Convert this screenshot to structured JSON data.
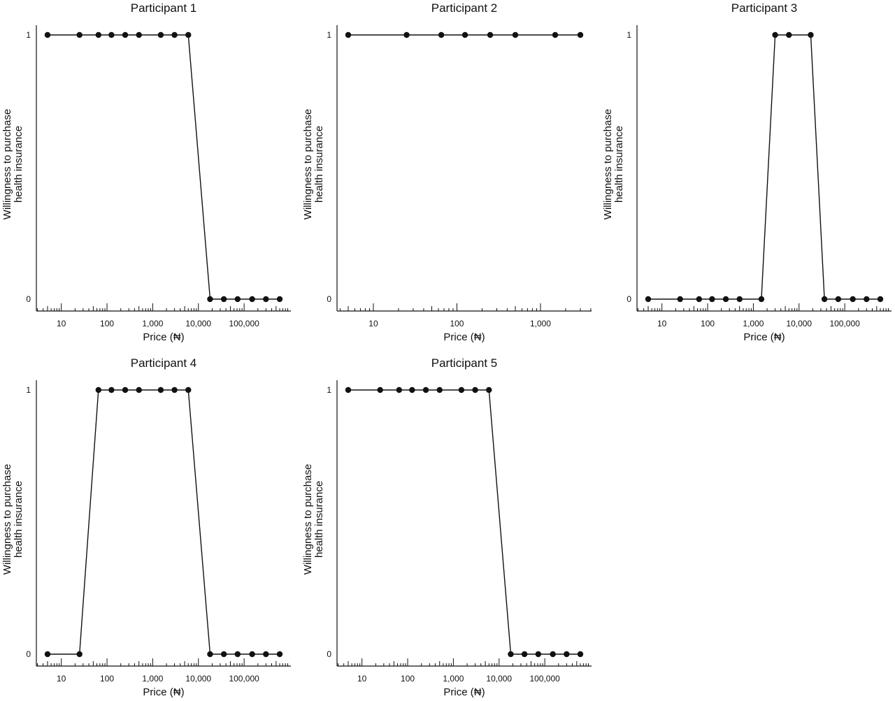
{
  "figure": {
    "y_tick_labels": [
      "0",
      "1"
    ],
    "x_tick_labels_wide": [
      "10",
      "100",
      "1,000",
      "10,000",
      "100,000"
    ],
    "x_tick_labels_narrow": [
      "10",
      "100",
      "1,000"
    ]
  },
  "chart_data": [
    {
      "type": "line",
      "title": "Participant 1",
      "xlabel": "Price (₦)",
      "ylabel": [
        "Willingness to purchase",
        "health insurance"
      ],
      "xscale": "log",
      "xlim": [
        3,
        900000
      ],
      "ylim": [
        0,
        1
      ],
      "x_ticks": [
        10,
        100,
        1000,
        10000,
        100000
      ],
      "y_ticks": [
        0,
        1
      ],
      "grid": false,
      "series": [
        {
          "x": [
            5,
            25,
            65,
            125,
            250,
            500,
            1500,
            3000,
            6000,
            18000,
            36000,
            72000,
            150000,
            300000,
            600000
          ],
          "y": [
            1,
            1,
            1,
            1,
            1,
            1,
            1,
            1,
            1,
            0,
            0,
            0,
            0,
            0,
            0
          ]
        }
      ]
    },
    {
      "type": "line",
      "title": "Participant 2",
      "xlabel": "Price (₦)",
      "ylabel": [
        "Willingness to purchase",
        "health insurance"
      ],
      "xscale": "log",
      "xlim": [
        3,
        6000
      ],
      "ylim": [
        0,
        1
      ],
      "x_ticks": [
        10,
        100,
        1000
      ],
      "y_ticks": [
        0,
        1
      ],
      "grid": false,
      "series": [
        {
          "x": [
            5,
            25,
            65,
            125,
            250,
            500,
            1500,
            3000
          ],
          "y": [
            1,
            1,
            1,
            1,
            1,
            1,
            1,
            1
          ]
        }
      ]
    },
    {
      "type": "line",
      "title": "Participant 3",
      "xlabel": "Price (₦)",
      "ylabel": [
        "Willingness to purchase",
        "health insurance"
      ],
      "xscale": "log",
      "xlim": [
        3,
        900000
      ],
      "ylim": [
        0,
        1
      ],
      "x_ticks": [
        10,
        100,
        1000,
        10000,
        100000
      ],
      "y_ticks": [
        0,
        1
      ],
      "grid": false,
      "series": [
        {
          "x": [
            5,
            25,
            65,
            125,
            250,
            500,
            1500,
            3000,
            6000,
            18000,
            36000,
            72000,
            150000,
            300000,
            600000
          ],
          "y": [
            0,
            0,
            0,
            0,
            0,
            0,
            0,
            1,
            1,
            1,
            0,
            0,
            0,
            0,
            0
          ]
        }
      ]
    },
    {
      "type": "line",
      "title": "Participant 4",
      "xlabel": "Price (₦)",
      "ylabel": [
        "Willingness to purchase",
        "health insurance"
      ],
      "xscale": "log",
      "xlim": [
        3,
        900000
      ],
      "ylim": [
        0,
        1
      ],
      "x_ticks": [
        10,
        100,
        1000,
        10000,
        100000
      ],
      "y_ticks": [
        0,
        1
      ],
      "grid": false,
      "series": [
        {
          "x": [
            5,
            25,
            65,
            125,
            250,
            500,
            1500,
            3000,
            6000,
            18000,
            36000,
            72000,
            150000,
            300000,
            600000
          ],
          "y": [
            0,
            0,
            1,
            1,
            1,
            1,
            1,
            1,
            1,
            0,
            0,
            0,
            0,
            0,
            0
          ]
        }
      ]
    },
    {
      "type": "line",
      "title": "Participant 5",
      "xlabel": "Price (₦)",
      "ylabel": [
        "Willingness to purchase",
        "health insurance"
      ],
      "xscale": "log",
      "xlim": [
        3,
        900000
      ],
      "ylim": [
        0,
        1
      ],
      "x_ticks": [
        10,
        100,
        1000,
        10000,
        100000
      ],
      "y_ticks": [
        0,
        1
      ],
      "grid": false,
      "series": [
        {
          "x": [
            5,
            25,
            65,
            125,
            250,
            500,
            1500,
            3000,
            6000,
            18000,
            36000,
            72000,
            150000,
            300000,
            600000
          ],
          "y": [
            1,
            1,
            1,
            1,
            1,
            1,
            1,
            1,
            1,
            0,
            0,
            0,
            0,
            0,
            0
          ]
        }
      ]
    }
  ]
}
